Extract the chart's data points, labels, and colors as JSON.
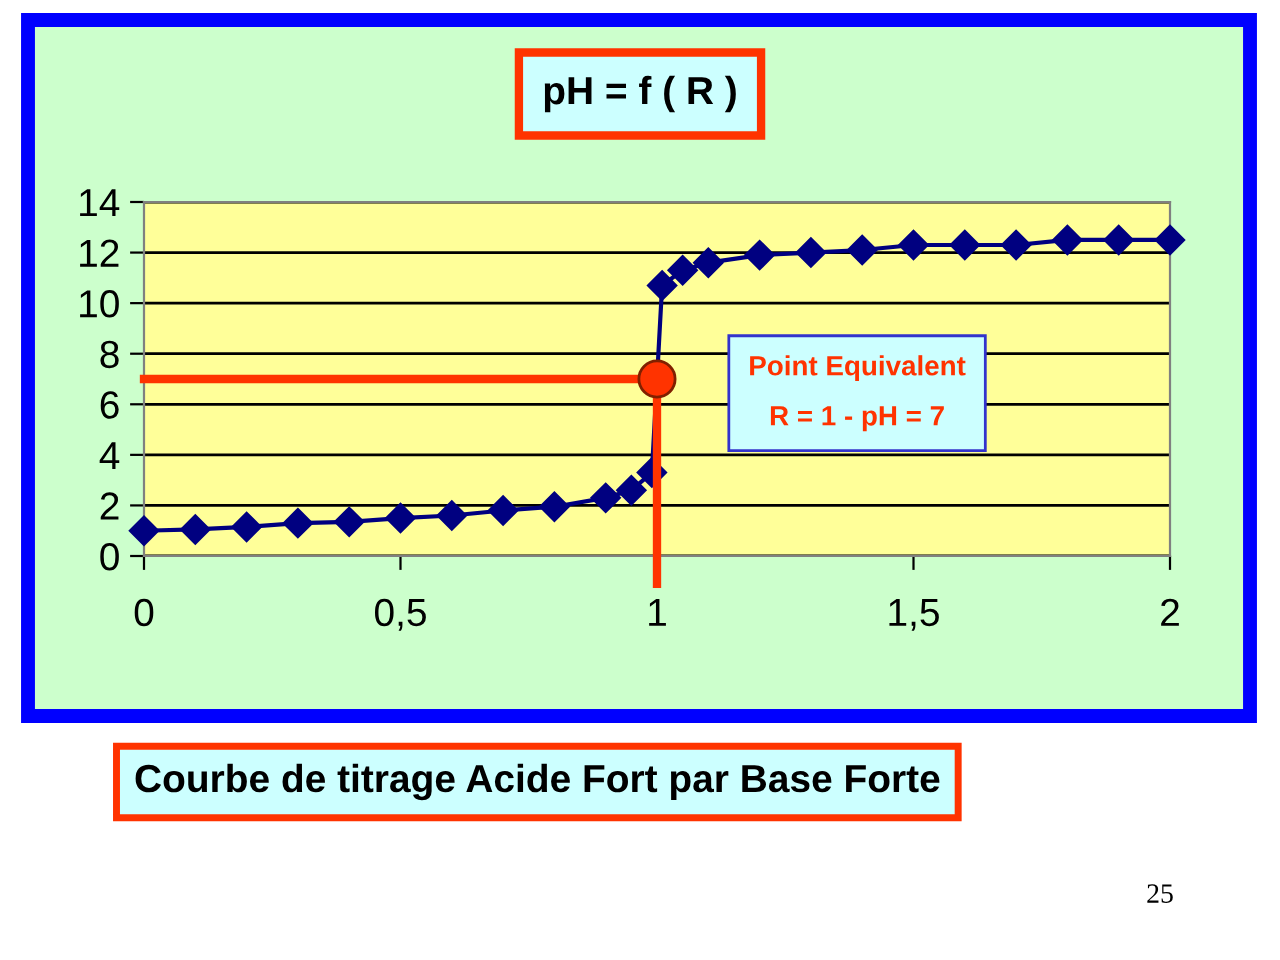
{
  "chart_data": {
    "type": "line",
    "title": "pH = f ( R )",
    "x": [
      0,
      0.1,
      0.2,
      0.3,
      0.4,
      0.5,
      0.6,
      0.7,
      0.8,
      0.9,
      0.95,
      0.99,
      1.01,
      1.05,
      1.1,
      1.2,
      1.3,
      1.4,
      1.5,
      1.6,
      1.7,
      1.8,
      1.9,
      2.0
    ],
    "series": [
      {
        "color": "#000080",
        "marker": "diamond",
        "values": [
          1.0,
          1.05,
          1.15,
          1.3,
          1.35,
          1.5,
          1.6,
          1.8,
          1.95,
          2.3,
          2.6,
          3.3,
          10.7,
          11.3,
          11.6,
          11.9,
          12.0,
          12.1,
          12.3,
          12.3,
          12.3,
          12.5,
          12.5,
          12.5
        ]
      },
      {
        "type": "scatter",
        "color": "#ff3300",
        "marker": "circle",
        "x": [
          1
        ],
        "values": [
          7
        ]
      }
    ],
    "xlim": [
      0,
      2
    ],
    "xticks": [
      0,
      {
        "value": 0.5,
        "label": "0,5"
      },
      1,
      {
        "value": 1.5,
        "label": "1,5"
      },
      2
    ],
    "ylim": [
      0,
      14
    ],
    "yticks": [
      0,
      2,
      4,
      6,
      8,
      10,
      12,
      14
    ],
    "grid": "y",
    "ref_lines": [
      {
        "axis": "y",
        "value": 7,
        "color": "#ff3300"
      },
      {
        "axis": "x",
        "value": 1,
        "color": "#ff3300"
      }
    ],
    "annotations": [
      "Point Equivalent\nR = 1 - pH = 7",
      "Courbe de titrage Acide Fort par Base Forte",
      "25"
    ]
  }
}
